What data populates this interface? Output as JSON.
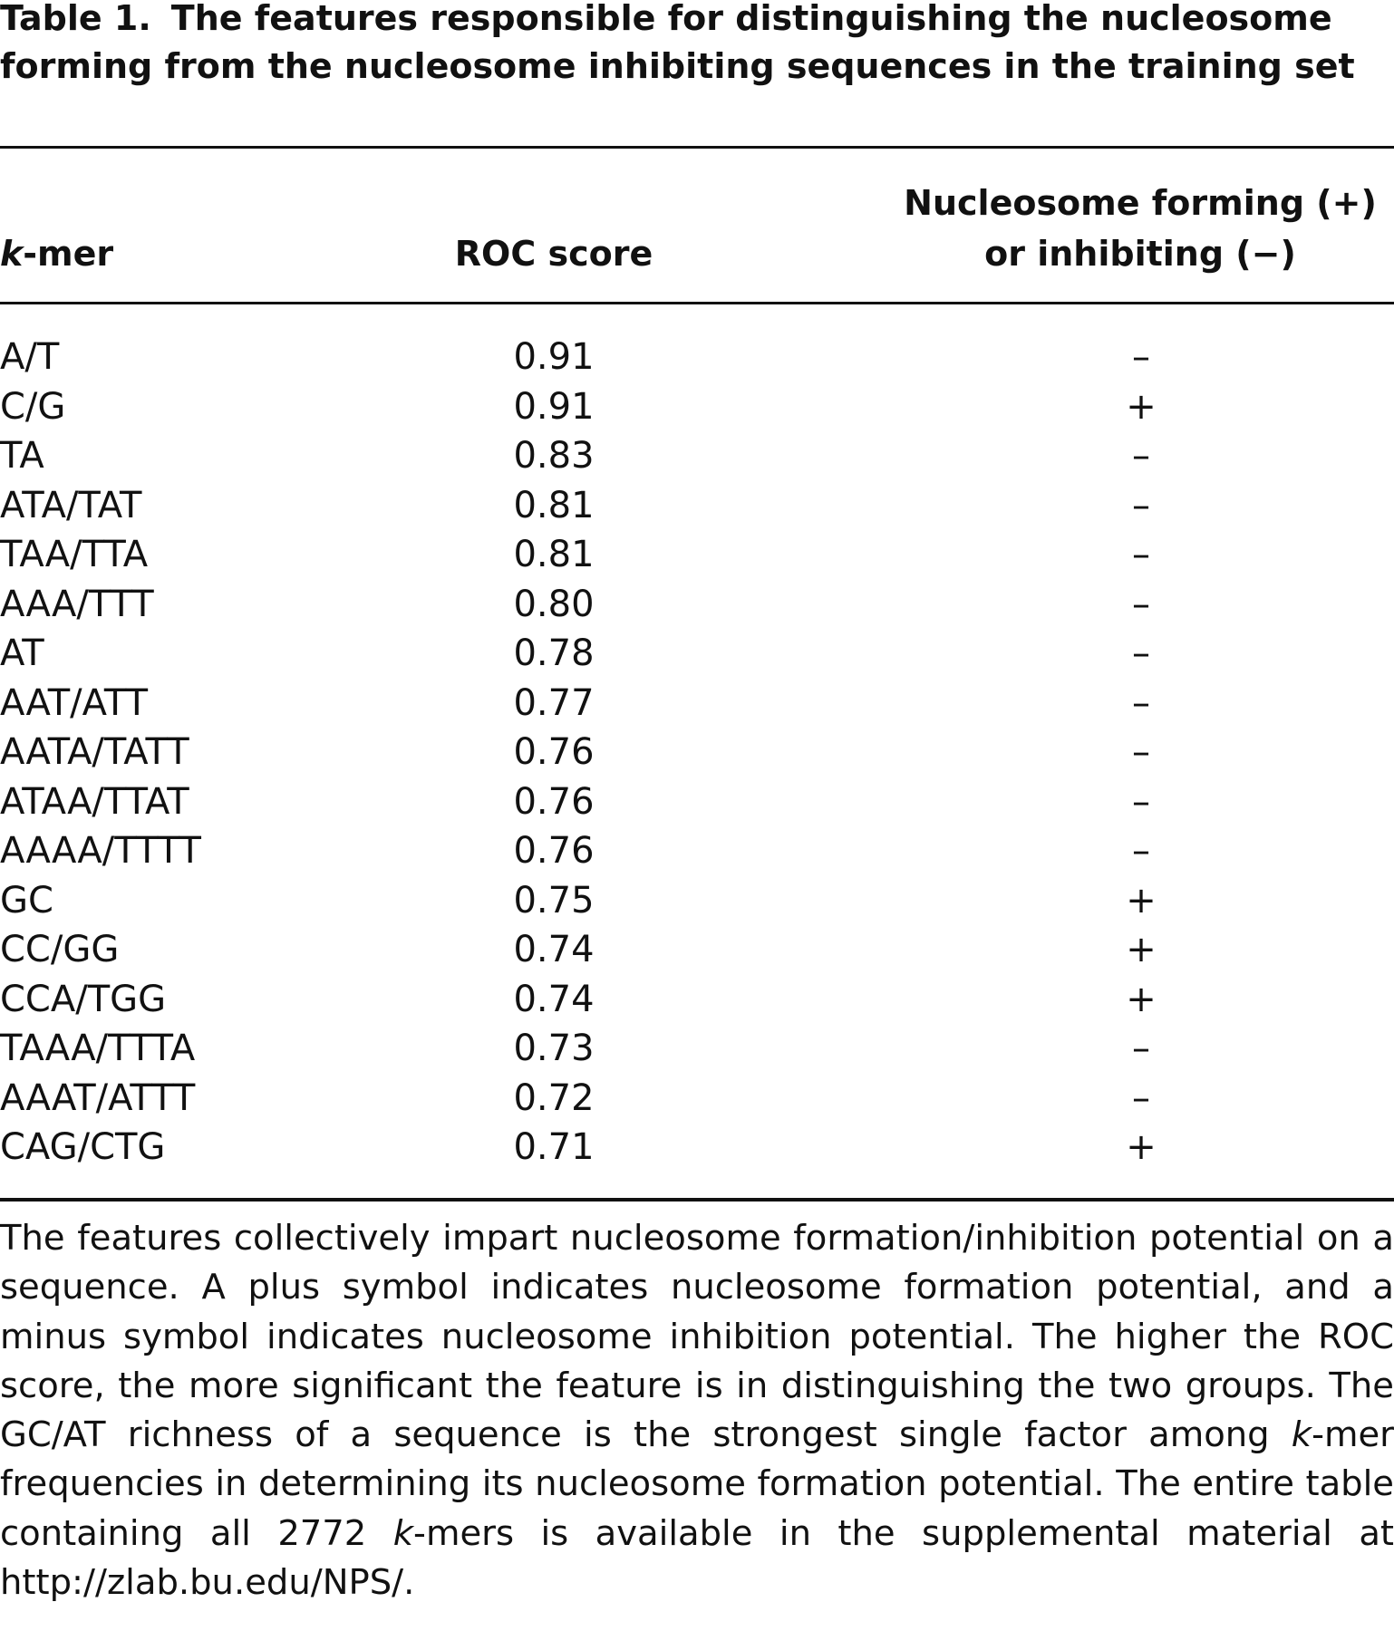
{
  "title": {
    "label": "Table 1.",
    "text": "The features responsible for distinguishing the nucleosome forming from the nucleosome inhibiting sequences in the training set"
  },
  "table": {
    "columns": [
      [
        "k",
        "-mer"
      ],
      "ROC score",
      [
        "Nucleosome forming (+)",
        "or inhibiting (−)"
      ]
    ],
    "rows": [
      [
        "A/T",
        "0.91",
        "–"
      ],
      [
        "C/G",
        "0.91",
        "+"
      ],
      [
        "TA",
        "0.83",
        "–"
      ],
      [
        "ATA/TAT",
        "0.81",
        "–"
      ],
      [
        "TAA/TTA",
        "0.81",
        "–"
      ],
      [
        "AAA/TTT",
        "0.80",
        "–"
      ],
      [
        "AT",
        "0.78",
        "–"
      ],
      [
        "AAT/ATT",
        "0.77",
        "–"
      ],
      [
        "AATA/TATT",
        "0.76",
        "–"
      ],
      [
        "ATAA/TTAT",
        "0.76",
        "–"
      ],
      [
        "AAAA/TTTT",
        "0.76",
        "–"
      ],
      [
        "GC",
        "0.75",
        "+"
      ],
      [
        "CC/GG",
        "0.74",
        "+"
      ],
      [
        "CCA/TGG",
        "0.74",
        "+"
      ],
      [
        "TAAA/TTTA",
        "0.73",
        "–"
      ],
      [
        "AAAT/ATTT",
        "0.72",
        "–"
      ],
      [
        "CAG/CTG",
        "0.71",
        "+"
      ]
    ]
  },
  "footnote": [
    "The features collectively impart nucleosome formation/inhibition potential on a sequence. A plus symbol indicates nucleosome formation potential, and a minus symbol indicates nucleosome inhibition potential. The higher the ROC score, the more significant the feature is in distinguishing the two groups. The GC/AT richness of a sequence is the strongest single factor among ",
    "k",
    "-mer frequencies in determining its nucleosome formation potential. The entire table containing all 2772 ",
    "k",
    "-mers is available in the supplemental material at http://zlab.bu.edu/NPS/."
  ]
}
